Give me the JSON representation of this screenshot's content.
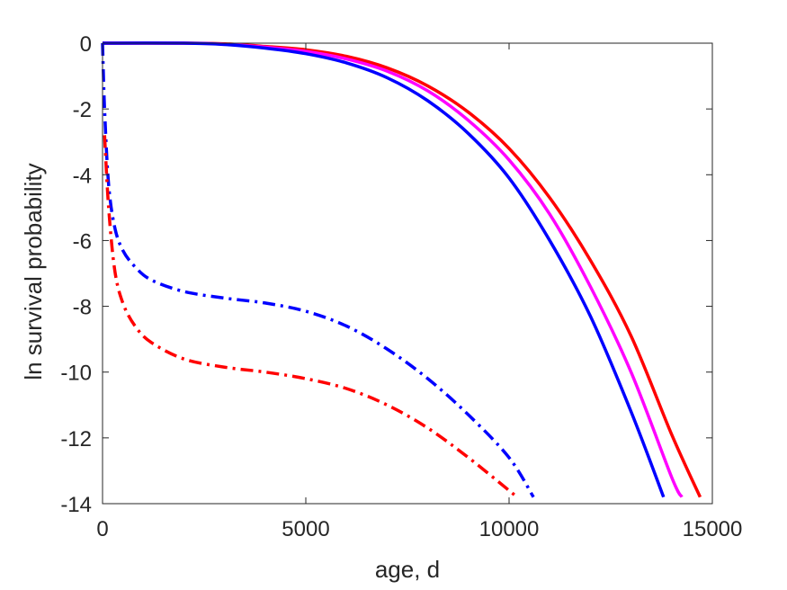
{
  "chart_data": {
    "type": "line",
    "xlabel": "age, d",
    "ylabel": "ln survival probability",
    "xlim": [
      0,
      15000
    ],
    "ylim": [
      -14,
      0
    ],
    "xticks": [
      0,
      5000,
      10000,
      15000
    ],
    "xtick_labels": [
      "0",
      "5000",
      "10000",
      "15000"
    ],
    "yticks": [
      0,
      -2,
      -4,
      -6,
      -8,
      -10,
      -12,
      -14
    ],
    "ytick_labels": [
      "0",
      "-2",
      "-4",
      "-6",
      "-8",
      "-10",
      "-12",
      "-14"
    ],
    "grid": false,
    "series": [
      {
        "color": "#ff0000",
        "style": "solid",
        "x": [
          0,
          2000,
          3000,
          4000,
          5000,
          6000,
          7000,
          8000,
          9000,
          10000,
          11000,
          12000,
          13000,
          14000,
          14700
        ],
        "y": [
          0,
          0,
          -0.02,
          -0.1,
          -0.2,
          -0.4,
          -0.75,
          -1.3,
          -2.1,
          -3.2,
          -4.7,
          -6.6,
          -8.9,
          -11.9,
          -13.8
        ]
      },
      {
        "color": "#ff00ff",
        "style": "solid",
        "x": [
          0,
          2000,
          3000,
          4000,
          5000,
          6000,
          7000,
          8000,
          9000,
          10000,
          11000,
          12000,
          13000,
          14000,
          14250
        ],
        "y": [
          0,
          0,
          -0.03,
          -0.12,
          -0.25,
          -0.48,
          -0.85,
          -1.45,
          -2.35,
          -3.55,
          -5.2,
          -7.4,
          -10.0,
          -13.2,
          -13.8
        ]
      },
      {
        "color": "#0000ff",
        "style": "solid",
        "x": [
          0,
          2000,
          3000,
          4000,
          5000,
          6000,
          7000,
          8000,
          9000,
          10000,
          11000,
          12000,
          13000,
          13800
        ],
        "y": [
          0,
          0,
          -0.04,
          -0.15,
          -0.32,
          -0.6,
          -1.05,
          -1.75,
          -2.75,
          -4.1,
          -6.0,
          -8.3,
          -11.2,
          -13.8
        ]
      },
      {
        "color": "#0000ff",
        "style": "dashdot",
        "x": [
          0,
          50,
          150,
          300,
          500,
          800,
          1200,
          2000,
          3000,
          4000,
          5000,
          6000,
          7000,
          8000,
          9000,
          10000,
          10600
        ],
        "y": [
          0,
          -2.0,
          -4.3,
          -5.6,
          -6.3,
          -6.8,
          -7.2,
          -7.55,
          -7.75,
          -7.9,
          -8.15,
          -8.6,
          -9.3,
          -10.2,
          -11.3,
          -12.6,
          -13.8
        ]
      },
      {
        "color": "#ff0000",
        "style": "dashdot",
        "x": [
          50,
          150,
          300,
          500,
          800,
          1200,
          2000,
          3000,
          4000,
          5000,
          6000,
          7000,
          8000,
          9000,
          10000,
          10200
        ],
        "y": [
          -2.8,
          -5.0,
          -6.9,
          -7.9,
          -8.6,
          -9.1,
          -9.6,
          -9.85,
          -10.0,
          -10.2,
          -10.5,
          -11.0,
          -11.7,
          -12.6,
          -13.6,
          -13.8
        ]
      }
    ]
  }
}
